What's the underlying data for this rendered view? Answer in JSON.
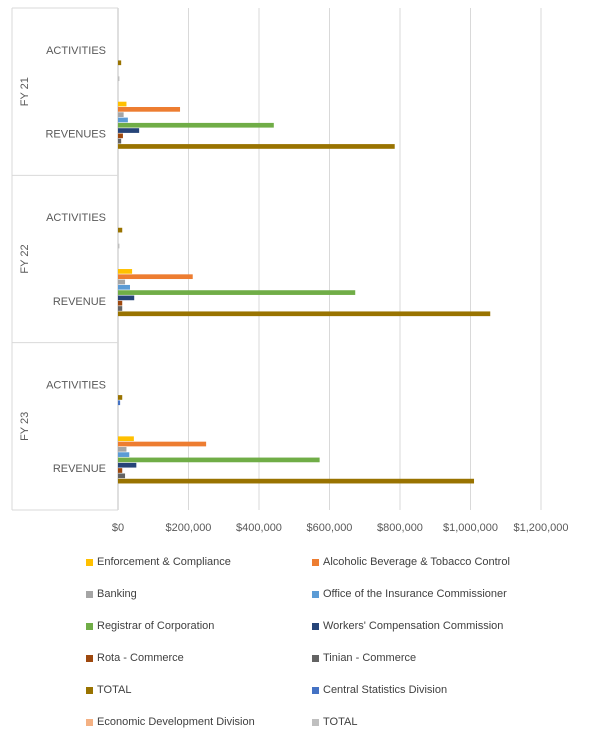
{
  "chart_data": {
    "type": "bar",
    "orientation": "horizontal",
    "groups": [
      {
        "label": "FY 21",
        "categories": [
          "ACTIVITIES",
          "REVENUES"
        ]
      },
      {
        "label": "FY 22",
        "categories": [
          "ACTIVITIES",
          "REVENUE"
        ]
      },
      {
        "label": "FY 23",
        "categories": [
          "ACTIVITIES",
          "REVENUE"
        ]
      }
    ],
    "xlim": [
      0,
      1200000
    ],
    "xticks": [
      {
        "value": 0,
        "label": "$0"
      },
      {
        "value": 200000,
        "label": "$200,000"
      },
      {
        "value": 400000,
        "label": "$400,000"
      },
      {
        "value": 600000,
        "label": "$600,000"
      },
      {
        "value": 800000,
        "label": "$800,000"
      },
      {
        "value": 1000000,
        "label": "$1,000,000"
      },
      {
        "value": 1200000,
        "label": "$1,200,000"
      }
    ],
    "grid": true,
    "legend_position": "bottom",
    "series": [
      {
        "name": "Enforcement & Compliance",
        "color": "#FFC000",
        "values": [
          0,
          24000,
          0,
          40000,
          0,
          45000
        ]
      },
      {
        "name": "Alcoholic Beverage & Tobacco Control",
        "color": "#ED7D31",
        "values": [
          0,
          176000,
          0,
          212000,
          0,
          250000
        ]
      },
      {
        "name": "Banking",
        "color": "#A5A5A5",
        "values": [
          0,
          16000,
          0,
          20000,
          0,
          24000
        ]
      },
      {
        "name": "Office of the Insurance Commissioner",
        "color": "#5B9BD5",
        "values": [
          0,
          28000,
          0,
          34000,
          0,
          32000
        ]
      },
      {
        "name": "Registrar of Corporation",
        "color": "#70AD47",
        "values": [
          0,
          442000,
          0,
          673000,
          0,
          572000
        ]
      },
      {
        "name": "Workers' Compensation Commission",
        "color": "#264478",
        "values": [
          0,
          60000,
          0,
          46000,
          0,
          52000
        ]
      },
      {
        "name": "Rota - Commerce",
        "color": "#9E480E",
        "values": [
          0,
          14000,
          0,
          12000,
          0,
          12000
        ]
      },
      {
        "name": "Tinian - Commerce",
        "color": "#636363",
        "values": [
          0,
          9000,
          0,
          12000,
          0,
          20000
        ]
      },
      {
        "name": "TOTAL",
        "color": "#997300",
        "values": [
          9000,
          785000,
          12000,
          1056000,
          12000,
          1010000
        ]
      },
      {
        "name": "Central Statistics Division",
        "color": "#4472C4",
        "values": [
          0,
          0,
          0,
          0,
          6000,
          0
        ]
      },
      {
        "name": "Economic Development Division",
        "color": "#F4B183",
        "values": [
          0,
          0,
          0,
          0,
          0,
          0
        ]
      },
      {
        "name": "TOTAL",
        "color": "#BFBFBF",
        "values": [
          4000,
          0,
          4000,
          0,
          0,
          0
        ]
      }
    ]
  }
}
